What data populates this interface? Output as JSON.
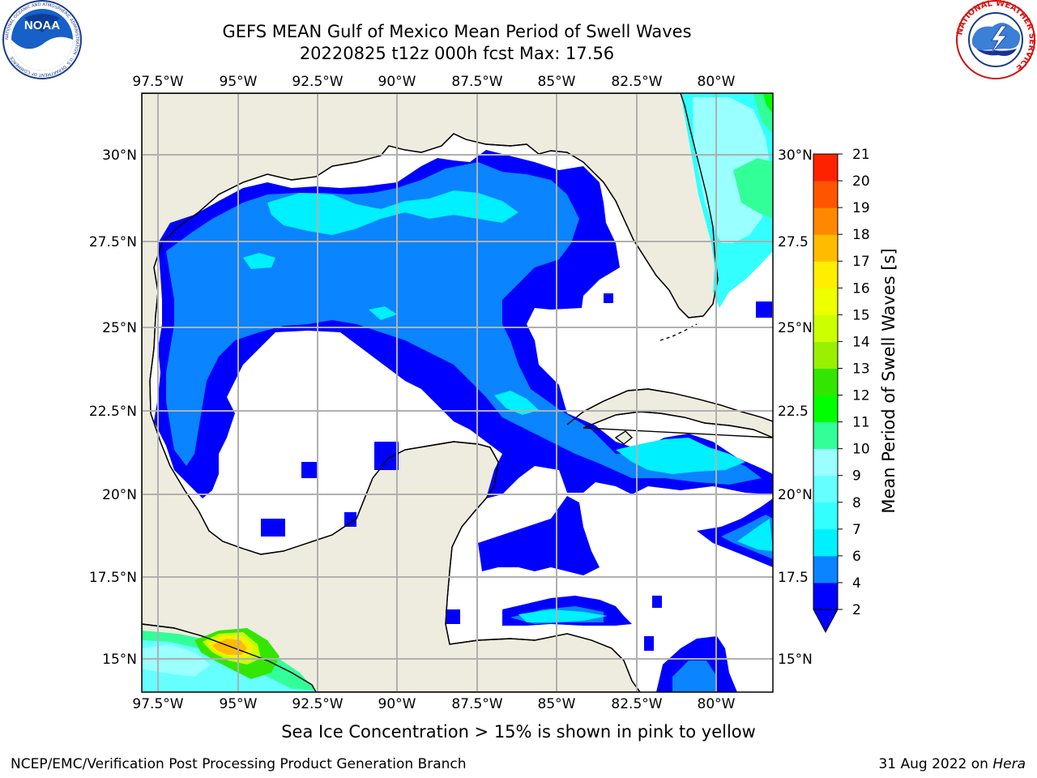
{
  "title": {
    "line1": "GEFS MEAN Gulf of Mexico Mean Period of Swell Waves",
    "line2": "20220825 t12z 000h fcst   Max: 17.56"
  },
  "logos": {
    "left": "NOAA",
    "left_ring": "NATIONAL OCEANIC AND ATMOSPHERIC ADMINISTRATION · U.S. DEPARTMENT OF COMMERCE",
    "right_ring": "NATIONAL WEATHER SERVICE"
  },
  "map": {
    "lon_labels": [
      "97.5°W",
      "95°W",
      "92.5°W",
      "90°W",
      "87.5°W",
      "85°W",
      "82.5°W",
      "80°W"
    ],
    "lat_labels_left": [
      "30°N",
      "27.5°N",
      "25°N",
      "22.5°N",
      "20°N",
      "17.5°N",
      "15°N"
    ],
    "lat_labels_right": [
      "30°N",
      "27.5",
      "25°N",
      "22.5",
      "20°N",
      "17.5",
      "15°N"
    ],
    "colors": {
      "land": "#eeecde",
      "ocean": "#ffffff",
      "grid": "#b0b0b0"
    }
  },
  "colorbar": {
    "title": "Mean Period of Swell Waves [s]",
    "levels": [
      "2",
      "4",
      "6",
      "7",
      "8",
      "9",
      "10",
      "11",
      "12",
      "13",
      "14",
      "15",
      "16",
      "17",
      "18",
      "19",
      "20",
      "21"
    ],
    "colors": [
      "#0000ff",
      "#0a84ff",
      "#00f0ff",
      "#33ffff",
      "#66ffff",
      "#99ffff",
      "#33ff99",
      "#00ff00",
      "#33e600",
      "#99f000",
      "#ccff00",
      "#eeff00",
      "#ffee00",
      "#ffbb00",
      "#ff8800",
      "#ff5500",
      "#ff2200"
    ],
    "extend": "min"
  },
  "footer": {
    "note": "Sea Ice Concentration > 15% is shown in pink to yellow",
    "credit_left": "NCEP/EMC/Verification Post Processing Product Generation Branch",
    "credit_date": "31 Aug 2022 on ",
    "credit_host": "Hera"
  }
}
